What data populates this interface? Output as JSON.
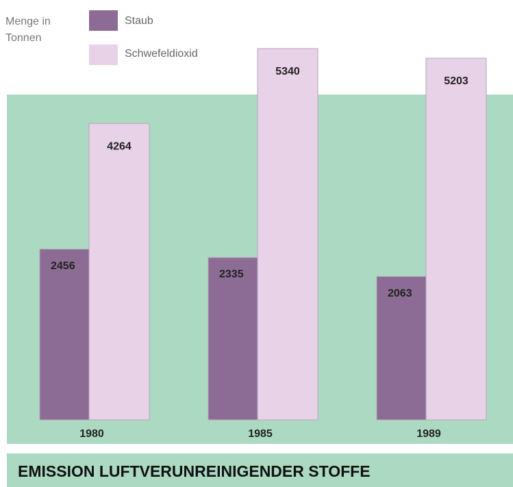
{
  "chart_data": {
    "type": "bar",
    "title": "EMISSION LUFTVERUNREINIGENDER STOFFE",
    "y_label": "Menge in Tonnen",
    "categories": [
      "1980",
      "1985",
      "1989"
    ],
    "series": [
      {
        "name": "Staub",
        "color": "#8c6c94",
        "values": [
          2456,
          2335,
          2063
        ]
      },
      {
        "name": "Schwefeldioxid",
        "color": "#e8d2e8",
        "values": [
          4264,
          5340,
          5203
        ]
      }
    ]
  }
}
